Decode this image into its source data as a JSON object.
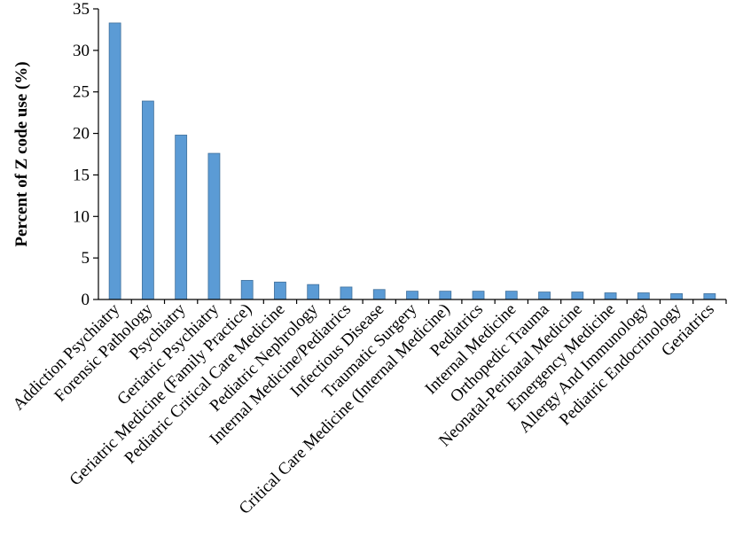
{
  "chart_data": {
    "type": "bar",
    "title": "",
    "xlabel": "",
    "ylabel": "Percent of Z code use (%)",
    "ylim": [
      0,
      35
    ],
    "yticks": [
      0,
      5,
      10,
      15,
      20,
      25,
      30,
      35
    ],
    "ytick_labels": [
      "0",
      "5",
      "10",
      "15",
      "20",
      "25",
      "30",
      "35"
    ],
    "grid": false,
    "legend": "none",
    "bar_color": "#5B9BD5",
    "bar_edge_color": "#41719C",
    "categories": [
      "Addiction Psychiatry",
      "Forensic Pathology",
      "Psychiatry",
      "Geriatric Psychiatry",
      "Geriatric Medicine (Family Practice)",
      "Pediatric Critical Care Medicine",
      "Pediatric Nephrology",
      "Internal Medicine/Pediatrics",
      "Infectious Disease",
      "Traumatic Surgery",
      "Critical Care Medicine (Internal Medicine)",
      "Pediatrics",
      "Internal Medicine",
      "Orthopedic Trauma",
      "Neonatal-Perinatal Medicine",
      "Emergency Medicine",
      "Allergy And Immunology",
      "Pediatric Endocrinology",
      "Geriatrics"
    ],
    "values": [
      33.3,
      23.9,
      19.8,
      17.6,
      2.3,
      2.1,
      1.8,
      1.5,
      1.2,
      1.0,
      1.0,
      1.0,
      1.0,
      0.9,
      0.9,
      0.8,
      0.8,
      0.7,
      0.7
    ]
  }
}
